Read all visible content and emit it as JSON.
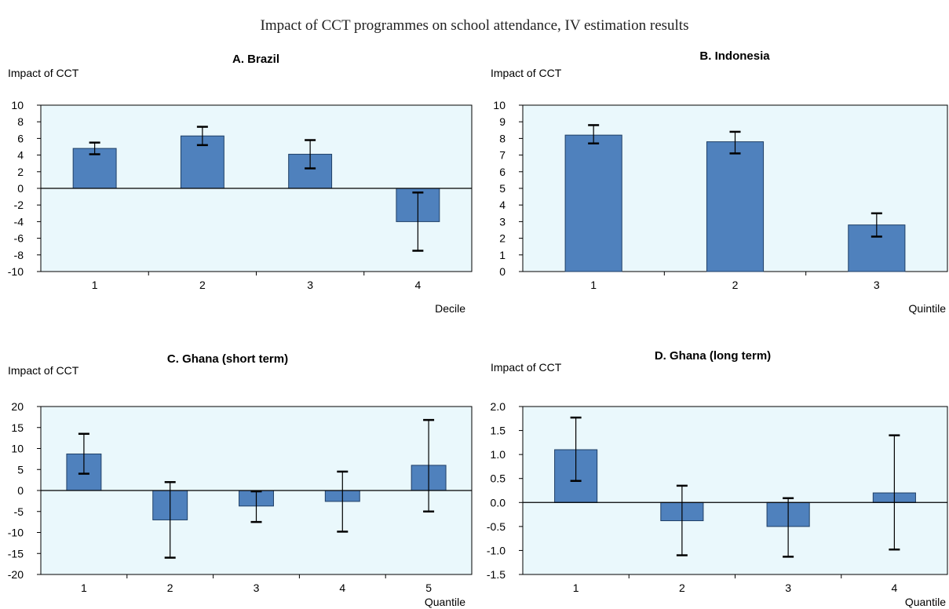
{
  "figure": {
    "title": "Impact of CCT programmes on school attendance, IV estimation results"
  },
  "colors": {
    "plot_background": "#EAF8FC",
    "bar_fill": "#4F81BD",
    "bar_stroke": "#1F3F66",
    "axis": "#000000"
  },
  "chart_data": [
    {
      "type": "bar",
      "title": "A. Brazil",
      "ylabel": "Impact of CCT",
      "xlabel": "Decile",
      "categories": [
        "1",
        "2",
        "3",
        "4"
      ],
      "values": [
        4.8,
        6.3,
        4.1,
        -4.0
      ],
      "error_low": [
        4.1,
        5.2,
        2.4,
        -7.5
      ],
      "error_high": [
        5.5,
        7.4,
        5.8,
        -0.5
      ],
      "ylim": [
        -10,
        10
      ],
      "yticks": [
        10,
        8,
        6,
        4,
        2,
        0,
        -2,
        -4,
        -6,
        -8,
        -10
      ]
    },
    {
      "type": "bar",
      "title": "B. Indonesia",
      "ylabel": "Impact of CCT",
      "xlabel": "Quintile",
      "categories": [
        "1",
        "2",
        "3"
      ],
      "values": [
        8.2,
        7.8,
        2.8
      ],
      "error_low": [
        7.7,
        7.1,
        2.1
      ],
      "error_high": [
        8.8,
        8.4,
        3.5
      ],
      "ylim": [
        0,
        10
      ],
      "yticks": [
        10,
        9,
        8,
        7,
        6,
        5,
        4,
        3,
        2,
        1,
        0
      ]
    },
    {
      "type": "bar",
      "title": "C. Ghana (short term)",
      "ylabel": "Impact of CCT",
      "xlabel": "Quantile",
      "categories": [
        "1",
        "2",
        "3",
        "4",
        "5"
      ],
      "values": [
        8.7,
        -7.0,
        -3.7,
        -2.6,
        6.0
      ],
      "error_low": [
        4.0,
        -16.0,
        -7.5,
        -9.8,
        -5.0
      ],
      "error_high": [
        13.5,
        2.0,
        -0.2,
        4.5,
        16.8
      ],
      "ylim": [
        -20,
        20
      ],
      "yticks": [
        20,
        15,
        10,
        5,
        0,
        -5,
        -10,
        -15,
        -20
      ]
    },
    {
      "type": "bar",
      "title": "D. Ghana (long term)",
      "ylabel": "Impact of CCT",
      "xlabel": "Quantile",
      "categories": [
        "1",
        "2",
        "3",
        "4"
      ],
      "values": [
        1.1,
        -0.38,
        -0.5,
        0.2
      ],
      "error_low": [
        0.45,
        -1.1,
        -1.13,
        -0.98
      ],
      "error_high": [
        1.77,
        0.35,
        0.09,
        1.4
      ],
      "ylim": [
        -1.5,
        2.0
      ],
      "yticks": [
        "2.0",
        "1.5",
        "1.0",
        "0.5",
        "0.0",
        "-0.5",
        "-1.0",
        "-1.5"
      ]
    }
  ]
}
